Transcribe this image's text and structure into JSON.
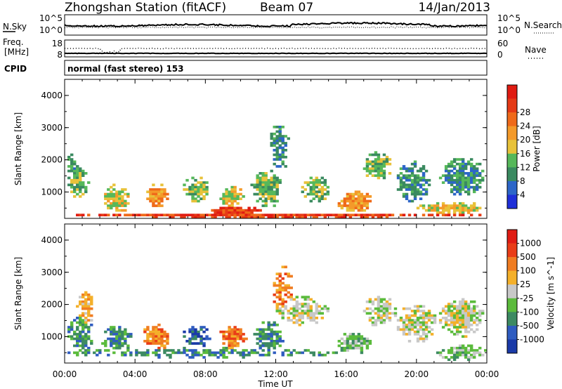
{
  "header": {
    "station": "Zhongshan Station (fitACF)",
    "beam": "Beam 07",
    "date": "14/Jan/2013"
  },
  "noise_panel": {
    "left_label": "N.Sky",
    "left_ticks": [
      "10^5",
      "10^0"
    ],
    "right_label": "N.Search",
    "right_ticks": [
      "10^5",
      "10^0"
    ]
  },
  "freq_panel": {
    "left_label_1": "Freq.",
    "left_label_2": "[MHz]",
    "left_ticks": [
      "18",
      "8"
    ],
    "right_label": "Nave",
    "right_ticks": [
      "60",
      "0"
    ]
  },
  "cpid": {
    "label": "CPID",
    "text": "normal (fast stereo) 153"
  },
  "chart_data": [
    {
      "type": "heatmap",
      "name": "Power",
      "ylabel": "Slant Range [km]",
      "xlabel": "Time UT",
      "ylim": [
        180,
        4500
      ],
      "xlim": [
        0,
        24
      ],
      "yticks": [
        1000,
        2000,
        3000,
        4000
      ],
      "colorbar_label": "Power [dB]",
      "colorbar_ticks": [
        "4",
        "8",
        "12",
        "16",
        "20",
        "24",
        "28"
      ],
      "colors": [
        "#1f2fd8",
        "#2d66c8",
        "#3a8a60",
        "#56b85a",
        "#e8c23a",
        "#f49a2a",
        "#ef6a1a",
        "#e53a16",
        "#e01b12"
      ],
      "blobs": [
        {
          "t": 0.8,
          "r": 1300,
          "dt": 1.2,
          "dr": 1100,
          "lvl": 3,
          "d": 0.85
        },
        {
          "t": 0.4,
          "r": 1800,
          "dt": 0.6,
          "dr": 800,
          "lvl": 2,
          "d": 0.7
        },
        {
          "t": 3.0,
          "r": 800,
          "dt": 1.6,
          "dr": 900,
          "lvl": 4,
          "d": 0.8
        },
        {
          "t": 5.2,
          "r": 900,
          "dt": 1.4,
          "dr": 800,
          "lvl": 5,
          "d": 0.75
        },
        {
          "t": 7.5,
          "r": 1100,
          "dt": 1.5,
          "dr": 800,
          "lvl": 3,
          "d": 0.7
        },
        {
          "t": 9.5,
          "r": 900,
          "dt": 1.5,
          "dr": 700,
          "lvl": 4,
          "d": 0.75
        },
        {
          "t": 11.5,
          "r": 1100,
          "dt": 1.8,
          "dr": 1200,
          "lvl": 3,
          "d": 0.75
        },
        {
          "t": 12.2,
          "r": 2400,
          "dt": 1.2,
          "dr": 1500,
          "lvl": 2,
          "d": 0.55
        },
        {
          "t": 14.3,
          "r": 1100,
          "dt": 1.6,
          "dr": 900,
          "lvl": 3,
          "d": 0.65
        },
        {
          "t": 16.5,
          "r": 700,
          "dt": 2.0,
          "dr": 700,
          "lvl": 5,
          "d": 0.8
        },
        {
          "t": 17.8,
          "r": 1800,
          "dt": 1.6,
          "dr": 900,
          "lvl": 3,
          "d": 0.7
        },
        {
          "t": 19.8,
          "r": 1300,
          "dt": 2.0,
          "dr": 1300,
          "lvl": 2,
          "d": 0.75
        },
        {
          "t": 22.6,
          "r": 1500,
          "dt": 2.6,
          "dr": 1200,
          "lvl": 2,
          "d": 0.75
        },
        {
          "t": 12.0,
          "r": 280,
          "dt": 24.0,
          "dr": 160,
          "lvl": 7,
          "d": 0.95
        },
        {
          "t": 9.8,
          "r": 400,
          "dt": 3.0,
          "dr": 300,
          "lvl": 7,
          "d": 0.85
        },
        {
          "t": 22.0,
          "r": 500,
          "dt": 4.0,
          "dr": 400,
          "lvl": 4,
          "d": 0.7
        }
      ]
    },
    {
      "type": "heatmap",
      "name": "Velocity",
      "ylabel": "Slant Range [km]",
      "xlabel": "Time UT",
      "ylim": [
        180,
        4500
      ],
      "xlim": [
        0,
        24
      ],
      "yticks": [
        1000,
        2000,
        3000,
        4000
      ],
      "colorbar_label": "Velocity [m s^-1]",
      "colorbar_ticks": [
        "1000",
        "500",
        "100",
        "25",
        "-25",
        "-100",
        "-500",
        "-1000"
      ],
      "colors": [
        "#1a3aa8",
        "#2f5cc0",
        "#3d8a62",
        "#5bbb3c",
        "#c8c8c8",
        "#f4b02a",
        "#f07d22",
        "#e93d18",
        "#e01c14"
      ],
      "blobs": [
        {
          "t": 0.9,
          "r": 1100,
          "dt": 1.4,
          "dr": 1400,
          "lvl": 2,
          "d": 0.6
        },
        {
          "t": 1.2,
          "r": 1800,
          "dt": 1.0,
          "dr": 1200,
          "lvl": 5,
          "d": 0.55
        },
        {
          "t": 3.0,
          "r": 900,
          "dt": 1.8,
          "dr": 900,
          "lvl": 2,
          "d": 0.7
        },
        {
          "t": 5.2,
          "r": 1000,
          "dt": 1.6,
          "dr": 900,
          "lvl": 6,
          "d": 0.7
        },
        {
          "t": 7.5,
          "r": 1000,
          "dt": 1.6,
          "dr": 700,
          "lvl": 1,
          "d": 0.6
        },
        {
          "t": 9.6,
          "r": 1000,
          "dt": 1.6,
          "dr": 800,
          "lvl": 6,
          "d": 0.75
        },
        {
          "t": 11.6,
          "r": 1000,
          "dt": 1.8,
          "dr": 1000,
          "lvl": 2,
          "d": 0.65
        },
        {
          "t": 12.4,
          "r": 2500,
          "dt": 1.2,
          "dr": 1400,
          "lvl": 6,
          "d": 0.45
        },
        {
          "t": 13.5,
          "r": 1800,
          "dt": 3.0,
          "dr": 900,
          "lvl": 4,
          "d": 0.55
        },
        {
          "t": 16.5,
          "r": 800,
          "dt": 2.0,
          "dr": 700,
          "lvl": 3,
          "d": 0.7
        },
        {
          "t": 18.0,
          "r": 1800,
          "dt": 2.0,
          "dr": 1000,
          "lvl": 4,
          "d": 0.6
        },
        {
          "t": 20.0,
          "r": 1400,
          "dt": 2.4,
          "dr": 1200,
          "lvl": 4,
          "d": 0.7
        },
        {
          "t": 22.6,
          "r": 1600,
          "dt": 2.6,
          "dr": 1200,
          "lvl": 4,
          "d": 0.75
        },
        {
          "t": 22.5,
          "r": 500,
          "dt": 3.0,
          "dr": 500,
          "lvl": 3,
          "d": 0.7
        },
        {
          "t": 8.0,
          "r": 500,
          "dt": 16.0,
          "dr": 300,
          "lvl": 2,
          "d": 0.5
        }
      ]
    }
  ],
  "time_axis": {
    "ticks": [
      "00:00",
      "04:00",
      "08:00",
      "12:00",
      "16:00",
      "20:00",
      "00:00"
    ],
    "label": "Time UT"
  }
}
